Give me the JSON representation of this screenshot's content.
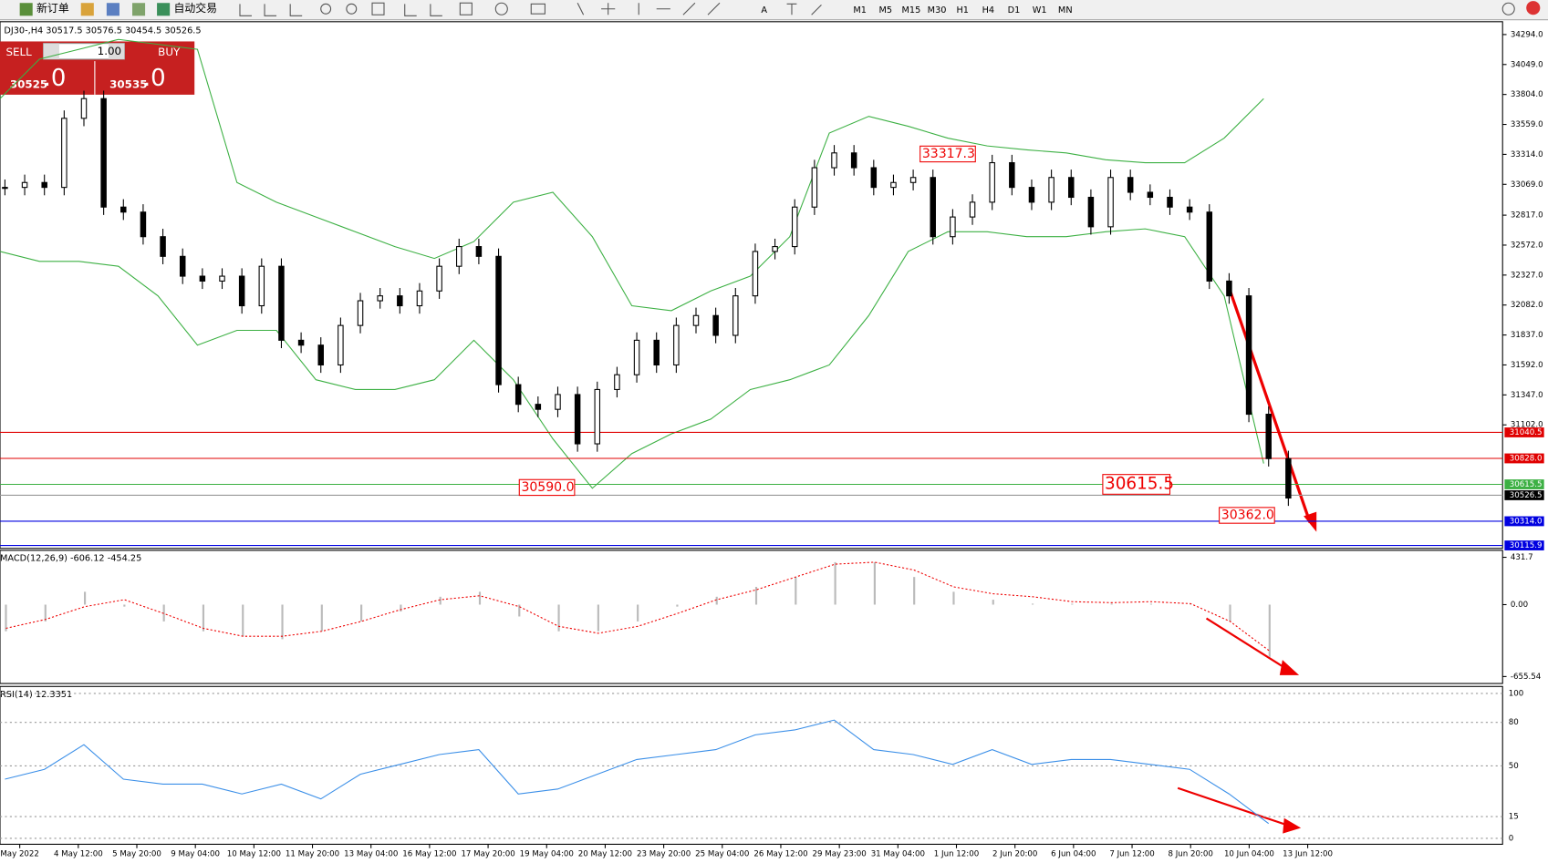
{
  "toolbar": {
    "new_order": "新订单",
    "auto_trade": "自动交易",
    "timeframes": [
      "M1",
      "M5",
      "M15",
      "M30",
      "H1",
      "H4",
      "D1",
      "W1",
      "MN"
    ]
  },
  "trade_panel": {
    "sell": "SELL",
    "buy": "BUY",
    "volume": "1.00",
    "bid": "30525",
    "bid_big": ".0",
    "ask": "30535",
    "ask_big": ".0"
  },
  "symbol_header": "DJ30-,H4  30517.5 30576.5 30454.5 30526.5",
  "price_pane": {
    "ylim": [
      30092,
      34399
    ],
    "yticks": [
      {
        "value": 34294,
        "label": "34294.0"
      },
      {
        "value": 34049,
        "label": "34049.0"
      },
      {
        "value": 33804,
        "label": "33804.0"
      },
      {
        "value": 33559,
        "label": "33559.0"
      },
      {
        "value": 33314,
        "label": "33314.0"
      },
      {
        "value": 33069,
        "label": "33069.0"
      },
      {
        "value": 32817,
        "label": "32817.0"
      },
      {
        "value": 32572,
        "label": "32572.0"
      },
      {
        "value": 32327,
        "label": "32327.0"
      },
      {
        "value": 32082,
        "label": "32082.0"
      },
      {
        "value": 31837,
        "label": "31837.0"
      },
      {
        "value": 31592,
        "label": "31592.0"
      },
      {
        "value": 31347,
        "label": "31347.0"
      },
      {
        "value": 31102,
        "label": "31102.0"
      }
    ],
    "levels": [
      {
        "value": 31040.5,
        "label": "31040.5",
        "color": "#e00000"
      },
      {
        "value": 30828,
        "label": "30828.0",
        "color": "#e00000"
      },
      {
        "value": 30615.5,
        "label": "30615.5",
        "color": "#3cb043"
      },
      {
        "value": 30526.5,
        "label": "30526.5",
        "color": "#000000"
      },
      {
        "value": 30314,
        "label": "30314.0",
        "color": "#0000e0"
      },
      {
        "value": 30115.9,
        "label": "30115.9",
        "color": "#0000e0"
      }
    ],
    "annotations": [
      {
        "value": 33317.3,
        "label": "33317.3"
      },
      {
        "value": 30590,
        "label": "30590.0"
      },
      {
        "value": 30615.5,
        "label": "30615.5"
      },
      {
        "value": 30362,
        "label": "30362.0"
      }
    ],
    "closes": [
      33044,
      33084,
      33044,
      33609,
      33770,
      32883,
      32842,
      32641,
      32480,
      32318,
      32278,
      32318,
      32076,
      32399,
      31794,
      31754,
      31592,
      31915,
      32117,
      32157,
      32076,
      32197,
      32399,
      32560,
      32480,
      31431,
      31270,
      31229,
      31350,
      30947,
      31391,
      31512,
      31794,
      31592,
      31915,
      31996,
      31834,
      32157,
      32520,
      32560,
      32883,
      33205,
      33326,
      33205,
      33044,
      33084,
      33125,
      32641,
      32802,
      32923,
      33246,
      33044,
      32923,
      33125,
      32963,
      32722,
      33125,
      33004,
      32963,
      32883,
      32842,
      32278,
      32157,
      31189,
      30826,
      30504
    ],
    "band_upper": [
      33770,
      34093,
      34173,
      34254,
      34214,
      34173,
      33084,
      32923,
      32802,
      32681,
      32560,
      32463,
      32601,
      32923,
      33004,
      32641,
      32076,
      32036,
      32197,
      32318,
      32641,
      33488,
      33625,
      33544,
      33447,
      33383,
      33351,
      33326,
      33270,
      33246,
      33246,
      33447,
      33770
    ],
    "band_lower": [
      32520,
      32439,
      32439,
      32399,
      32157,
      31754,
      31875,
      31875,
      31471,
      31391,
      31391,
      31471,
      31794,
      31471,
      30988,
      30584,
      30867,
      31028,
      31149,
      31391,
      31471,
      31592,
      31996,
      32520,
      32681,
      32681,
      32641,
      32641,
      32681,
      32705,
      32641,
      32157,
      30786
    ]
  },
  "time_labels": [
    "May 2022",
    "4 May 12:00",
    "5 May 20:00",
    "9 May 04:00",
    "10 May 12:00",
    "11 May 20:00",
    "13 May 04:00",
    "16 May 12:00",
    "17 May 20:00",
    "19 May 04:00",
    "20 May 12:00",
    "23 May 20:00",
    "25 May 04:00",
    "26 May 12:00",
    "29 May 23:00",
    "31 May 04:00",
    "1 Jun 12:00",
    "2 Jun 20:00",
    "6 Jun 04:00",
    "7 Jun 12:00",
    "8 Jun 20:00",
    "10 Jun 04:00",
    "13 Jun 12:00"
  ],
  "macd": {
    "label": "MACD(12,26,9) -606.12 -454.25",
    "ylim": [
      -719,
      495
    ],
    "yticks": [
      431.7,
      {
        "value": 0,
        "label": "0.00"
      },
      -655.54
    ],
    "histogram": [
      -243,
      -153,
      117,
      -18,
      -153,
      -243,
      -288,
      -315,
      -243,
      -153,
      -63,
      72,
      117,
      -108,
      -243,
      -243,
      -153,
      -18,
      72,
      162,
      252,
      387,
      387,
      252,
      117,
      45,
      9,
      9,
      9,
      9,
      9,
      -153,
      -477
    ],
    "signal": [
      -216,
      -135,
      -18,
      45,
      -81,
      -216,
      -288,
      -288,
      -243,
      -153,
      -45,
      45,
      81,
      -18,
      -198,
      -261,
      -198,
      -81,
      45,
      135,
      252,
      369,
      387,
      315,
      162,
      99,
      72,
      27,
      18,
      27,
      9,
      -153,
      -423
    ]
  },
  "rsi": {
    "label": "RSI(14) 12.3351",
    "ylim": [
      -4.1,
      104.8
    ],
    "yticks": [
      100,
      80,
      50,
      15,
      0
    ],
    "values": [
      40.8,
      47.6,
      64.6,
      40.8,
      37.4,
      37.4,
      30.6,
      37.4,
      27.2,
      44.2,
      51.0,
      57.8,
      61.2,
      30.6,
      34.0,
      44.2,
      54.4,
      57.8,
      61.2,
      71.4,
      74.8,
      81.6,
      61.2,
      57.8,
      51.0,
      61.2,
      51.0,
      54.4,
      54.4,
      51.0,
      47.6,
      30.6,
      10.2
    ]
  }
}
